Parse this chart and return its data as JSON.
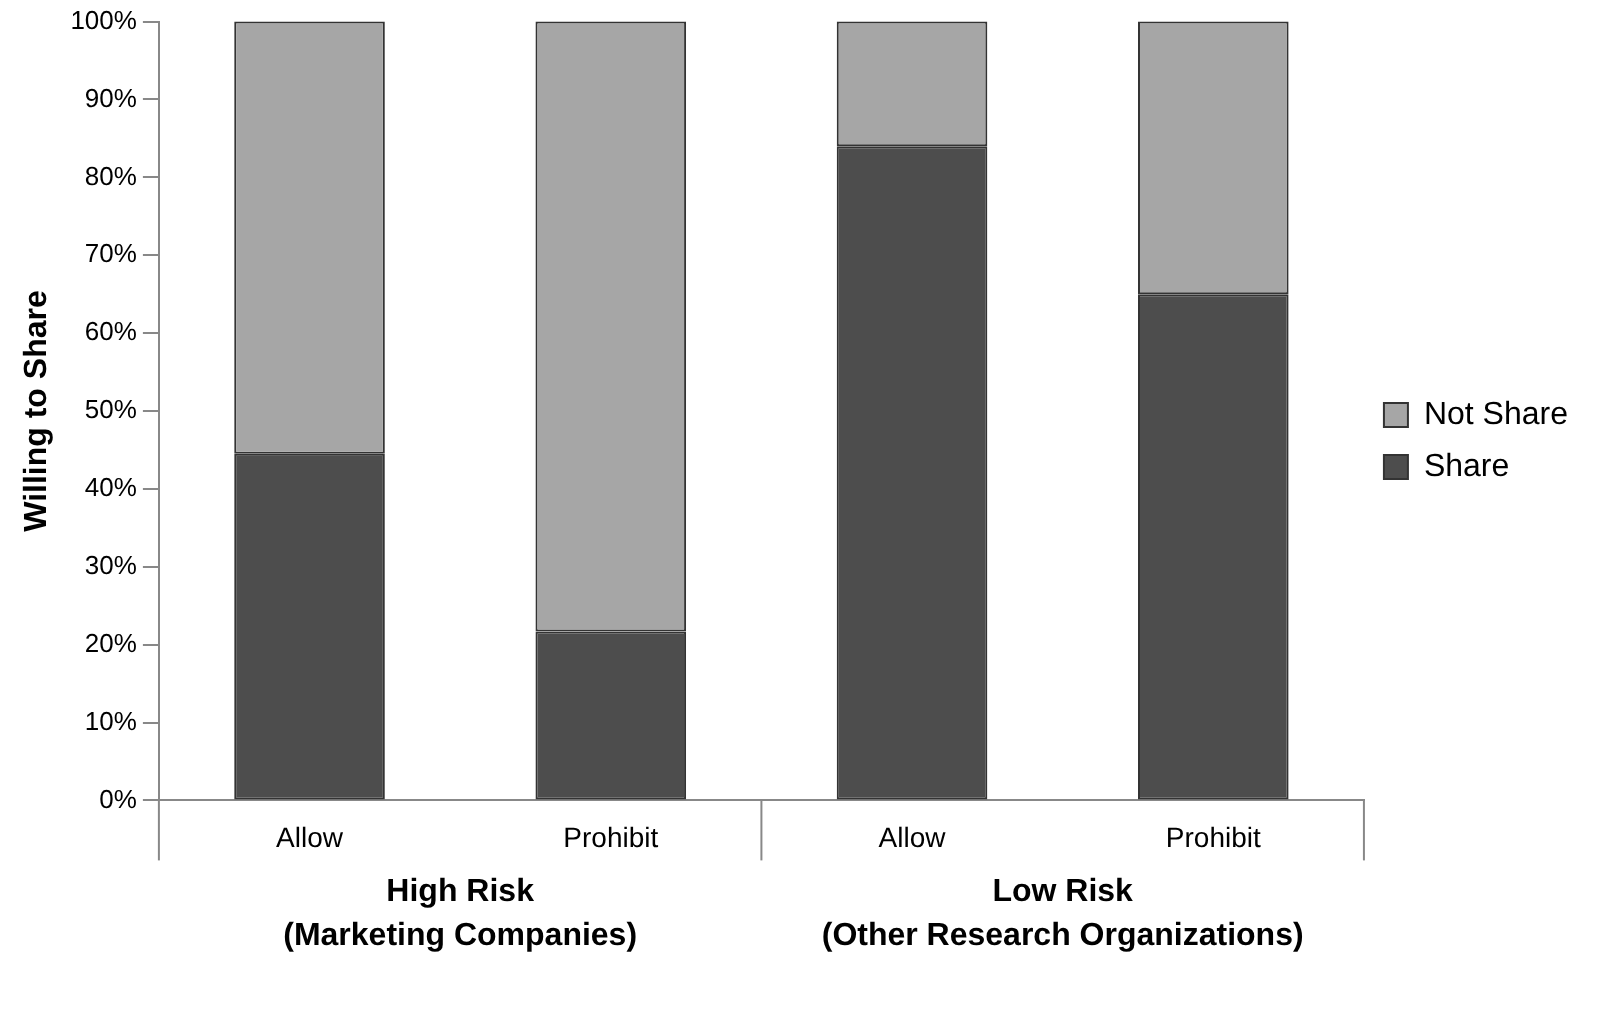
{
  "chart_data": {
    "type": "bar",
    "stacked": true,
    "ylabel": "Willing to Share",
    "categories": [
      "Allow",
      "Prohibit",
      "Allow",
      "Prohibit"
    ],
    "series": [
      {
        "name": "Share",
        "color": "#4d4d4d",
        "values": [
          44.5,
          21.7,
          84,
          65
        ]
      },
      {
        "name": "Not Share",
        "color": "#a6a6a6",
        "values": [
          55.5,
          78.3,
          16,
          35
        ]
      }
    ],
    "ylim": [
      0,
      100
    ],
    "yticks": [
      {
        "value": 0,
        "label": "0%"
      },
      {
        "value": 10,
        "label": "10%"
      },
      {
        "value": 20,
        "label": "20%"
      },
      {
        "value": 30,
        "label": "30%"
      },
      {
        "value": 40,
        "label": "40%"
      },
      {
        "value": 50,
        "label": "50%"
      },
      {
        "value": 60,
        "label": "60%"
      },
      {
        "value": 70,
        "label": "70%"
      },
      {
        "value": 80,
        "label": "80%"
      },
      {
        "value": 90,
        "label": "90%"
      },
      {
        "value": 100,
        "label": "100%"
      }
    ],
    "grid": false,
    "legend": "right",
    "annotations": [
      "High Risk\n(Marketing Companies)",
      "Low Risk\n(Other Research Organizations)"
    ]
  }
}
